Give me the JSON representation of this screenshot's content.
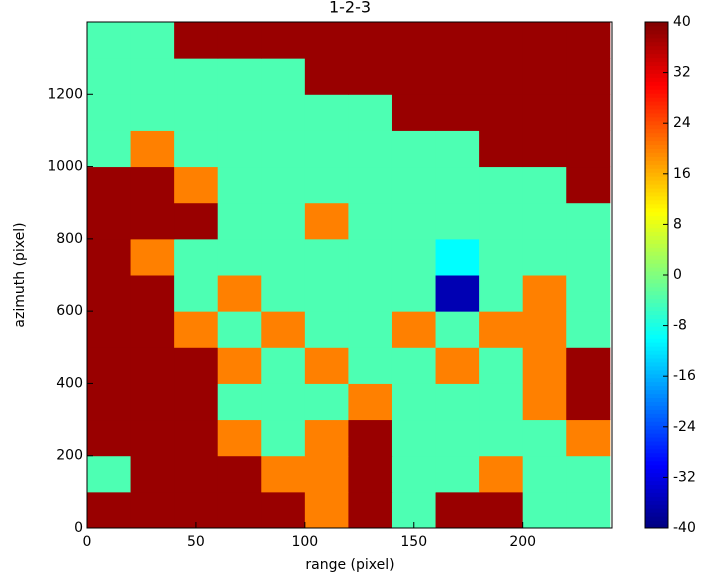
{
  "chart_data": {
    "type": "heatmap",
    "title": "1-2-3",
    "x_label": "range (pixel)",
    "y_label": "azimuth (pixel)",
    "colormap": "jet",
    "x_edges": [
      0,
      20,
      40,
      60,
      80,
      100,
      120,
      140,
      160,
      180,
      200,
      220,
      240
    ],
    "y_edges": [
      0,
      100,
      200,
      300,
      400,
      500,
      600,
      700,
      800,
      900,
      1000,
      1100,
      1200,
      1300,
      1400
    ],
    "z": [
      [
        38,
        38,
        38,
        38,
        38,
        20,
        38,
        -4,
        38,
        38,
        -4,
        -4
      ],
      [
        -4,
        38,
        38,
        38,
        20,
        20,
        38,
        -4,
        -4,
        20,
        -4,
        -4
      ],
      [
        38,
        38,
        38,
        20,
        -4,
        20,
        38,
        -4,
        -4,
        -4,
        -4,
        20
      ],
      [
        38,
        38,
        38,
        -4,
        -4,
        -4,
        20,
        -4,
        -4,
        -4,
        20,
        38
      ],
      [
        38,
        38,
        38,
        20,
        -4,
        20,
        -4,
        -4,
        20,
        -4,
        20,
        38
      ],
      [
        38,
        38,
        20,
        -4,
        20,
        -4,
        -4,
        20,
        -4,
        20,
        20,
        -4
      ],
      [
        38,
        38,
        -4,
        20,
        -4,
        -4,
        -4,
        -4,
        -36,
        -4,
        20,
        -4
      ],
      [
        38,
        20,
        -4,
        -4,
        -4,
        -4,
        -4,
        -4,
        -10,
        -4,
        -4,
        -4
      ],
      [
        38,
        38,
        38,
        -4,
        -4,
        20,
        -4,
        -4,
        -4,
        -4,
        -4,
        -4
      ],
      [
        38,
        38,
        20,
        -4,
        -4,
        -4,
        -4,
        -4,
        -4,
        -4,
        -4,
        38
      ],
      [
        -4,
        20,
        -4,
        -4,
        -4,
        -4,
        -4,
        -4,
        -4,
        38,
        38,
        38
      ],
      [
        -4,
        -4,
        -4,
        -4,
        -4,
        -4,
        -4,
        38,
        38,
        38,
        38,
        38
      ],
      [
        -4,
        -4,
        -4,
        -4,
        -4,
        38,
        38,
        38,
        38,
        38,
        38,
        38
      ],
      [
        -4,
        -4,
        38,
        38,
        38,
        38,
        38,
        38,
        38,
        38,
        38,
        38
      ]
    ],
    "xlim": [
      0,
      241
    ],
    "xticks": [
      0,
      50,
      100,
      150,
      200
    ],
    "ylim": [
      0,
      1400
    ],
    "yticks": [
      0,
      200,
      400,
      600,
      800,
      1000,
      1200
    ],
    "clim": [
      -40,
      40
    ],
    "cticks": [
      -40,
      -32,
      -24,
      -16,
      -8,
      0,
      8,
      16,
      24,
      32,
      40
    ]
  }
}
